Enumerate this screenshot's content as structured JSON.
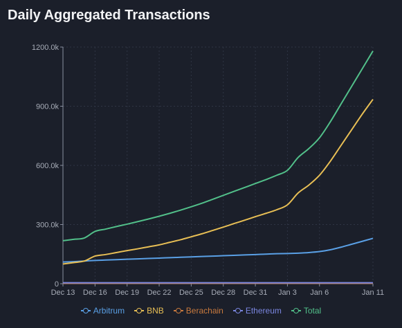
{
  "title": "Daily Aggregated Transactions",
  "chart_data": {
    "type": "line",
    "title": "Daily Aggregated Transactions",
    "xlabel": "",
    "ylabel": "",
    "ylim": [
      0,
      1200000
    ],
    "grid": true,
    "legend_position": "bottom",
    "x": [
      "Dec 13",
      "Dec 14",
      "Dec 15",
      "Dec 16",
      "Dec 17",
      "Dec 18",
      "Dec 19",
      "Dec 20",
      "Dec 21",
      "Dec 22",
      "Dec 23",
      "Dec 24",
      "Dec 25",
      "Dec 26",
      "Dec 27",
      "Dec 28",
      "Dec 29",
      "Dec 30",
      "Dec 31",
      "Jan 1",
      "Jan 2",
      "Jan 3",
      "Jan 4",
      "Jan 5",
      "Jan 6",
      "Jan 7",
      "Jan 8",
      "Jan 9",
      "Jan 10",
      "Jan 11"
    ],
    "x_ticks": [
      "Dec 13",
      "Dec 16",
      "Dec 19",
      "Dec 22",
      "Dec 25",
      "Dec 28",
      "Dec 31",
      "Jan 3",
      "Jan 6",
      "Jan 11"
    ],
    "y_ticks": [
      0,
      300000,
      600000,
      900000,
      1200000
    ],
    "y_tick_labels": [
      "0",
      "300.0k",
      "600.0k",
      "900.0k",
      "1200.0k"
    ],
    "series": [
      {
        "name": "Arbitrum",
        "color": "#5aa0e6",
        "values": [
          110000,
          112000,
          115000,
          118000,
          120000,
          122000,
          124000,
          126000,
          128000,
          130000,
          132000,
          134000,
          136000,
          138000,
          140000,
          142000,
          144000,
          146000,
          148000,
          150000,
          152000,
          153000,
          155000,
          158000,
          163000,
          172000,
          185000,
          200000,
          215000,
          230000
        ]
      },
      {
        "name": "BNB",
        "color": "#e8bf55",
        "values": [
          100000,
          107000,
          115000,
          140000,
          148000,
          158000,
          168000,
          177000,
          187000,
          197000,
          210000,
          223000,
          238000,
          253000,
          270000,
          287000,
          305000,
          322000,
          340000,
          357000,
          375000,
          400000,
          460000,
          500000,
          550000,
          620000,
          700000,
          780000,
          860000,
          935000
        ]
      },
      {
        "name": "Berachain",
        "color": "#c97a3e",
        "values": [
          2000,
          2000,
          2000,
          2000,
          2000,
          2000,
          2000,
          2000,
          2000,
          2000,
          2000,
          2000,
          2000,
          2000,
          2000,
          2000,
          2000,
          2000,
          2000,
          2000,
          2000,
          2000,
          2000,
          2000,
          2000,
          2000,
          2000,
          2000,
          2000,
          2000
        ]
      },
      {
        "name": "Ethereum",
        "color": "#7b86e0",
        "values": [
          5000,
          5000,
          5000,
          5000,
          5000,
          5000,
          5000,
          5000,
          5000,
          5000,
          5000,
          5000,
          5000,
          5000,
          5000,
          5000,
          5000,
          5000,
          5000,
          5000,
          5000,
          5000,
          5000,
          5000,
          5000,
          5000,
          5000,
          5000,
          5000,
          5000
        ]
      },
      {
        "name": "Total",
        "color": "#52c08a",
        "values": [
          218000,
          225000,
          232000,
          265000,
          277000,
          290000,
          302000,
          315000,
          328000,
          342000,
          357000,
          373000,
          390000,
          408000,
          428000,
          448000,
          468000,
          488000,
          508000,
          528000,
          550000,
          575000,
          640000,
          685000,
          740000,
          820000,
          910000,
          1000000,
          1090000,
          1180000
        ]
      }
    ]
  }
}
